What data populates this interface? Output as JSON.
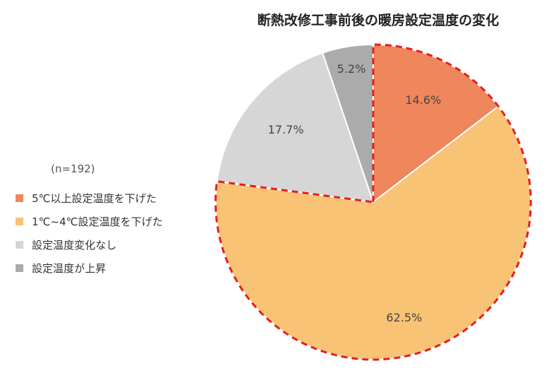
{
  "chart_data": {
    "type": "pie",
    "title": "断熱改修工事前後の暖房設定温度の変化",
    "note": "(n=192)",
    "categories": [
      "5℃以上設定温度を下げた",
      "1℃~4℃設定温度を下げた",
      "設定温度変化なし",
      "設定温度が上昇"
    ],
    "values": [
      14.6,
      62.5,
      17.7,
      5.2
    ],
    "value_labels": [
      "14.6%",
      "62.5%",
      "17.7%",
      "5.2%"
    ],
    "colors": [
      "#ef865c",
      "#f8c374",
      "#d6d6d6",
      "#ababab"
    ],
    "highlight": {
      "categories": [
        "5℃以上設定温度を下げた",
        "1℃~4℃設定温度を下げた"
      ],
      "outline": "dashed",
      "color": "#e61e1e"
    },
    "start": "12 o'clock",
    "direction": "clockwise",
    "legend_position": "left"
  }
}
